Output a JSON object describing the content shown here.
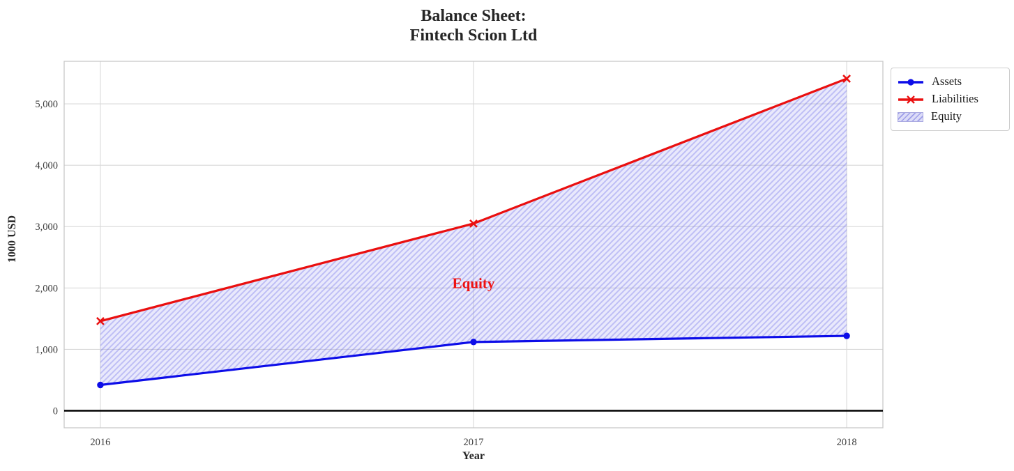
{
  "figure": {
    "background": "#ffffff"
  },
  "chart_data": {
    "type": "line",
    "title": "Balance Sheet:\nFintech Scion Ltd",
    "title_lines": [
      "Balance Sheet:",
      "Fintech Scion Ltd"
    ],
    "xlabel": "Year",
    "ylabel": "1000 USD",
    "x": [
      2016,
      2017,
      2018
    ],
    "xtick_labels": [
      "2016",
      "2017",
      "2018"
    ],
    "yticks": {
      "values": [
        0,
        1000,
        2000,
        3000,
        4000,
        5000
      ],
      "labels": [
        "0",
        "1,000",
        "2,000",
        "3,000",
        "4,000",
        "5,000"
      ]
    },
    "xlim": [
      2015.903,
      2018.097
    ],
    "ylim": [
      -278,
      5693
    ],
    "grid": true,
    "zero_line": {
      "value": 0,
      "color": "#000000"
    },
    "series": [
      {
        "name": "Assets",
        "color": "#0d0de8",
        "marker": "circle",
        "values": [
          420,
          1120,
          1220
        ]
      },
      {
        "name": "Liabilities",
        "color": "#ea0f0f",
        "marker": "x",
        "values": [
          1460,
          3050,
          5410
        ]
      }
    ],
    "area": {
      "name": "Equity",
      "between": [
        "Assets",
        "Liabilities"
      ],
      "fill_base": "rgba(125,125,240,0.17)",
      "hatch_line": "rgba(90,90,230,0.30)",
      "legend_fill": "#dcdcf7",
      "legend_edge": "#a8a8e0"
    },
    "annotation": {
      "text": "Equity",
      "x": 2017,
      "y": 2080,
      "color": "#ee1111"
    },
    "legend_position": "outside upper right",
    "colors": {
      "grid": "#d9d9d9",
      "spine": "#c8c8c8",
      "tick_text": "#3c3c3c",
      "title_text": "#262626"
    }
  }
}
